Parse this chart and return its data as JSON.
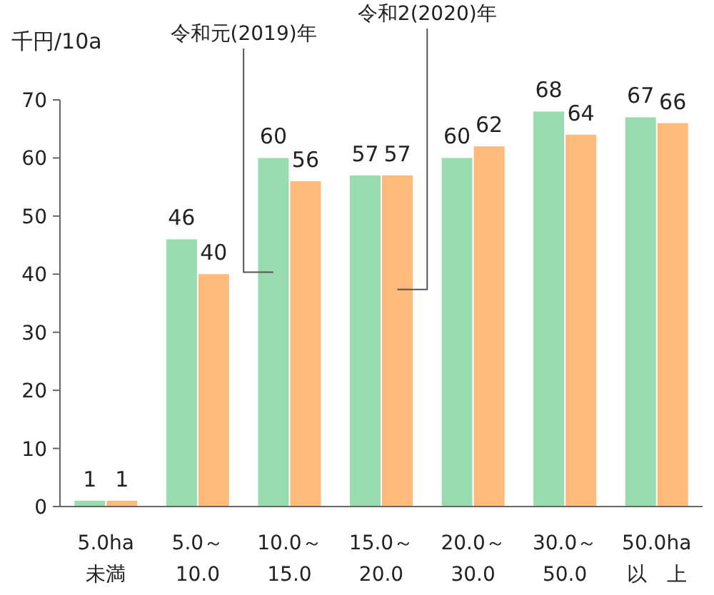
{
  "chart_data": {
    "type": "bar",
    "ylabel": "千円/10a",
    "categories": [
      "5.0ha\n未満",
      "5.0～\n10.0",
      "10.0～\n15.0",
      "15.0～\n20.0",
      "20.0～\n30.0",
      "30.0～\n50.0",
      "50.0ha\n以　上"
    ],
    "series": [
      {
        "name": "令和元(2019)年",
        "color": "#98dcb0",
        "values": [
          1,
          46,
          60,
          57,
          60,
          68,
          67
        ]
      },
      {
        "name": "令和2(2020)年",
        "color": "#ffb97a",
        "values": [
          1,
          40,
          56,
          57,
          62,
          64,
          66
        ]
      }
    ],
    "ylim": [
      0,
      70
    ],
    "yticks": [
      0,
      10,
      20,
      30,
      40,
      50,
      60,
      70
    ],
    "data_labels": true
  }
}
